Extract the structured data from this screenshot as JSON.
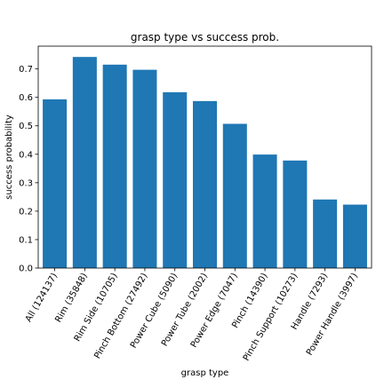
{
  "chart_data": {
    "type": "bar",
    "title": "grasp type vs success prob.",
    "xlabel": "grasp type",
    "ylabel": "success probability",
    "categories": [
      "All (124137)",
      "Rim (35848)",
      "Rim Side (10705)",
      "Pinch Bottom (27492)",
      "Power Cube (5090)",
      "Power Tube (2002)",
      "Power Edge (7047)",
      "Pinch (14390)",
      "Pinch Support (10273)",
      "Handle (7293)",
      "Power Handle (3997)"
    ],
    "values": [
      0.593,
      0.742,
      0.715,
      0.697,
      0.618,
      0.587,
      0.507,
      0.399,
      0.378,
      0.241,
      0.223
    ],
    "ylim": [
      0,
      0.78
    ],
    "yticks": [
      0.0,
      0.1,
      0.2,
      0.3,
      0.4,
      0.5,
      0.6,
      0.7
    ],
    "bar_color": "#1f77b4",
    "grid": false,
    "legend": "none"
  }
}
